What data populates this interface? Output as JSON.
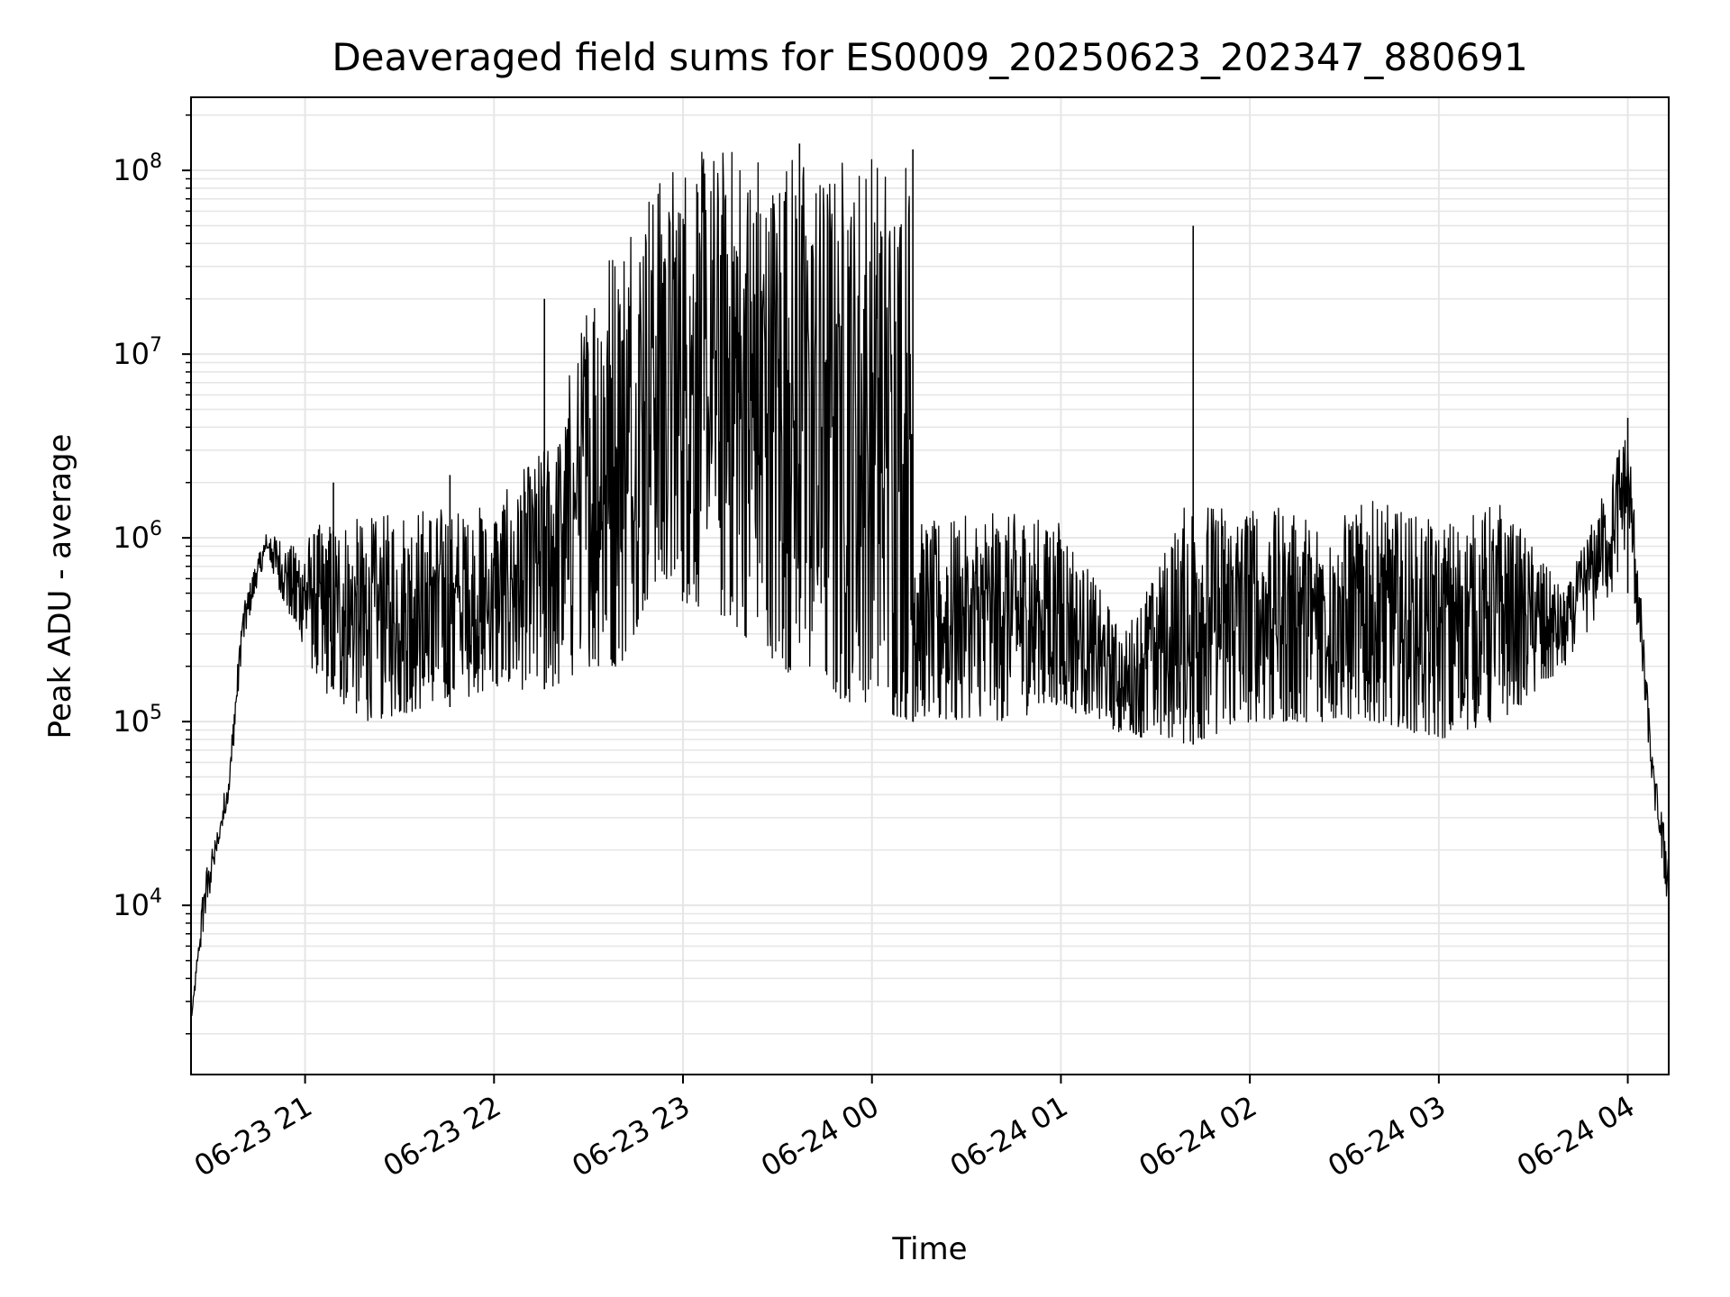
{
  "chart_data": {
    "type": "line",
    "title": "Deaveraged field sums for ES0009_20250623_202347_880691",
    "xlabel": "Time",
    "ylabel": "Peak ADU - average",
    "yscale": "log",
    "ylim": [
      1200,
      250000000
    ],
    "xlim": [
      "2025-06-23 20:23:47",
      "2025-06-24 04:13:00"
    ],
    "grid": true,
    "line_color": "#000000",
    "grid_color": "#e6e6e6",
    "x_ticks": [
      {
        "time": "2025-06-23 21:00",
        "label": "06-23 21"
      },
      {
        "time": "2025-06-23 22:00",
        "label": "06-23 22"
      },
      {
        "time": "2025-06-23 23:00",
        "label": "06-23 23"
      },
      {
        "time": "2025-06-24 00:00",
        "label": "06-24 00"
      },
      {
        "time": "2025-06-24 01:00",
        "label": "06-24 01"
      },
      {
        "time": "2025-06-24 02:00",
        "label": "06-24 02"
      },
      {
        "time": "2025-06-24 03:00",
        "label": "06-24 03"
      },
      {
        "time": "2025-06-24 04:00",
        "label": "06-24 04"
      }
    ],
    "y_ticks": [
      {
        "value": 10000,
        "base": "10",
        "exp": "4"
      },
      {
        "value": 100000,
        "base": "10",
        "exp": "5"
      },
      {
        "value": 1000000,
        "base": "10",
        "exp": "6"
      },
      {
        "value": 10000000,
        "base": "10",
        "exp": "7"
      },
      {
        "value": 100000000,
        "base": "10",
        "exp": "8"
      }
    ],
    "series": [
      {
        "envelope": [
          {
            "time": "2025-06-23 20:24",
            "low": 2500,
            "high": 2500
          },
          {
            "time": "2025-06-23 20:28",
            "low": 8000,
            "high": 15000
          },
          {
            "time": "2025-06-23 20:32",
            "low": 18000,
            "high": 25000
          },
          {
            "time": "2025-06-23 20:36",
            "low": 40000,
            "high": 60000
          },
          {
            "time": "2025-06-23 20:40",
            "low": 250000,
            "high": 400000
          },
          {
            "time": "2025-06-23 20:44",
            "low": 500000,
            "high": 700000
          },
          {
            "time": "2025-06-23 20:48",
            "low": 800000,
            "high": 1100000
          },
          {
            "time": "2025-06-23 20:52",
            "low": 500000,
            "high": 1000000
          },
          {
            "time": "2025-06-23 20:56",
            "low": 350000,
            "high": 900000
          },
          {
            "time": "2025-06-23 21:05",
            "low": 150000,
            "high": 1200000
          },
          {
            "time": "2025-06-23 21:20",
            "low": 100000,
            "high": 1300000
          },
          {
            "time": "2025-06-23 21:40",
            "low": 120000,
            "high": 1500000
          },
          {
            "time": "2025-06-23 22:00",
            "low": 150000,
            "high": 1500000
          },
          {
            "time": "2025-06-23 22:20",
            "low": 150000,
            "high": 4000000
          },
          {
            "time": "2025-06-23 22:30",
            "low": 200000,
            "high": 25000000
          },
          {
            "time": "2025-06-23 22:40",
            "low": 200000,
            "high": 50000000
          },
          {
            "time": "2025-06-23 22:50",
            "low": 500000,
            "high": 100000000
          },
          {
            "time": "2025-06-23 23:10",
            "low": 400000,
            "high": 140000000
          },
          {
            "time": "2025-06-23 23:40",
            "low": 150000,
            "high": 130000000
          },
          {
            "time": "2025-06-24 00:12",
            "low": 100000,
            "high": 130000000
          },
          {
            "time": "2025-06-24 00:14",
            "low": 100000,
            "high": 1200000
          },
          {
            "time": "2025-06-24 00:40",
            "low": 100000,
            "high": 1400000
          },
          {
            "time": "2025-06-24 01:00",
            "low": 120000,
            "high": 1300000
          },
          {
            "time": "2025-06-24 01:20",
            "low": 85000,
            "high": 300000
          },
          {
            "time": "2025-06-24 01:40",
            "low": 75000,
            "high": 1600000
          },
          {
            "time": "2025-06-24 02:00",
            "low": 100000,
            "high": 1600000
          },
          {
            "time": "2025-06-24 02:20",
            "low": 100000,
            "high": 1300000
          },
          {
            "time": "2025-06-24 02:40",
            "low": 100000,
            "high": 1600000
          },
          {
            "time": "2025-06-24 03:00",
            "low": 80000,
            "high": 1200000
          },
          {
            "time": "2025-06-24 03:20",
            "low": 100000,
            "high": 1600000
          },
          {
            "time": "2025-06-24 03:40",
            "low": 200000,
            "high": 500000
          },
          {
            "time": "2025-06-24 03:55",
            "low": 500000,
            "high": 2500000
          },
          {
            "time": "2025-06-24 04:00",
            "low": 1000000,
            "high": 4500000
          },
          {
            "time": "2025-06-24 04:05",
            "low": 150000,
            "high": 300000
          },
          {
            "time": "2025-06-24 04:08",
            "low": 40000,
            "high": 60000
          },
          {
            "time": "2025-06-24 04:13",
            "low": 9000,
            "high": 20000
          }
        ],
        "spikes": [
          {
            "time": "2025-06-23 21:09",
            "value": 2000000
          },
          {
            "time": "2025-06-23 21:46",
            "value": 2200000
          },
          {
            "time": "2025-06-23 22:16",
            "value": 20000000
          },
          {
            "time": "2025-06-23 23:37",
            "value": 140000000
          },
          {
            "time": "2025-06-24 00:13",
            "value": 130000000
          },
          {
            "time": "2025-06-24 01:42",
            "value": 50000000
          },
          {
            "time": "2025-06-24 04:00",
            "value": 4500000
          }
        ]
      }
    ]
  }
}
